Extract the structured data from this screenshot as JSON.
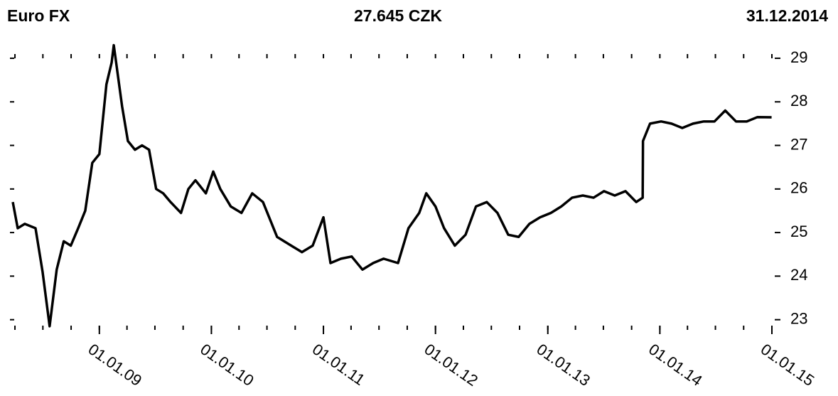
{
  "chart_data": {
    "type": "line",
    "title": "Euro FX",
    "subtitle": "27.645 CZK",
    "date_label": "31.12.2014",
    "x": [
      "2008-03-25",
      "2008-04-10",
      "2008-05-03",
      "2008-06-07",
      "2008-06-30",
      "2008-07-23",
      "2008-08-15",
      "2008-09-07",
      "2008-09-30",
      "2008-10-24",
      "2008-11-16",
      "2008-12-09",
      "2009-01-01",
      "2009-01-24",
      "2009-02-10",
      "2009-02-17",
      "2009-03-16",
      "2009-04-04",
      "2009-04-27",
      "2009-05-20",
      "2009-06-12",
      "2009-07-05",
      "2009-07-28",
      "2009-08-21",
      "2009-09-24",
      "2009-10-18",
      "2009-11-10",
      "2009-12-14",
      "2010-01-07",
      "2010-01-30",
      "2010-03-05",
      "2010-04-09",
      "2010-05-14",
      "2010-06-18",
      "2010-08-03",
      "2010-09-18",
      "2010-10-23",
      "2010-11-27",
      "2011-01-01",
      "2011-01-24",
      "2011-02-27",
      "2011-04-03",
      "2011-05-08",
      "2011-06-12",
      "2011-07-16",
      "2011-09-01",
      "2011-10-05",
      "2011-11-09",
      "2011-12-02",
      "2012-01-01",
      "2012-01-29",
      "2012-03-04",
      "2012-04-08",
      "2012-05-12",
      "2012-06-16",
      "2012-07-21",
      "2012-08-25",
      "2012-09-28",
      "2012-11-02",
      "2012-12-07",
      "2013-01-11",
      "2013-02-14",
      "2013-03-21",
      "2013-04-25",
      "2013-05-30",
      "2013-07-03",
      "2013-08-07",
      "2013-09-11",
      "2013-10-16",
      "2013-11-06",
      "2013-11-07",
      "2013-11-30",
      "2014-01-05",
      "2014-02-08",
      "2014-03-15",
      "2014-04-19",
      "2014-05-24",
      "2014-06-28",
      "2014-08-02",
      "2014-09-06",
      "2014-10-11",
      "2014-11-15",
      "2014-12-31"
    ],
    "series": [
      {
        "name": "Euro FX",
        "color": "#000000",
        "values": [
          25.7,
          25.1,
          25.2,
          25.1,
          24.1,
          22.85,
          24.15,
          24.8,
          24.7,
          25.1,
          25.5,
          26.6,
          26.8,
          28.4,
          28.9,
          29.3,
          27.9,
          27.1,
          26.9,
          27.0,
          26.9,
          26.0,
          25.9,
          25.7,
          25.45,
          26.0,
          26.2,
          25.9,
          26.4,
          26.0,
          25.6,
          25.45,
          25.9,
          25.7,
          24.9,
          24.7,
          24.55,
          24.7,
          25.35,
          24.3,
          24.4,
          24.45,
          24.15,
          24.3,
          24.4,
          24.3,
          25.1,
          25.45,
          25.9,
          25.6,
          25.1,
          24.7,
          24.95,
          25.6,
          25.7,
          25.45,
          24.95,
          24.9,
          25.2,
          25.35,
          25.45,
          25.6,
          25.8,
          25.85,
          25.8,
          25.95,
          25.85,
          25.95,
          25.7,
          25.8,
          27.1,
          27.5,
          27.55,
          27.5,
          27.4,
          27.5,
          27.55,
          27.55,
          27.8,
          27.55,
          27.55,
          27.65,
          27.645
        ]
      }
    ],
    "xlim": [
      "2008-03-25",
      "2015-01-01"
    ],
    "xticks": [
      {
        "value": "2009-01-01",
        "label": "01.01.09"
      },
      {
        "value": "2010-01-01",
        "label": "01.01.10"
      },
      {
        "value": "2011-01-01",
        "label": "01.01.11"
      },
      {
        "value": "2012-01-01",
        "label": "01.01.12"
      },
      {
        "value": "2013-01-01",
        "label": "01.01.13"
      },
      {
        "value": "2014-01-01",
        "label": "01.01.14"
      },
      {
        "value": "2015-01-01",
        "label": "01.01.15"
      }
    ],
    "x_minor_ticks": [
      "2008-04-01",
      "2008-07-01",
      "2008-10-01",
      "2009-01-01",
      "2009-04-01",
      "2009-07-01",
      "2009-10-01",
      "2010-01-01",
      "2010-04-01",
      "2010-07-01",
      "2010-10-01",
      "2011-01-01",
      "2011-04-01",
      "2011-07-01",
      "2011-10-01",
      "2012-01-01",
      "2012-04-01",
      "2012-07-01",
      "2012-10-01",
      "2013-01-01",
      "2013-04-01",
      "2013-07-01",
      "2013-10-01",
      "2014-01-01",
      "2014-04-01",
      "2014-07-01",
      "2014-10-01",
      "2015-01-01"
    ],
    "ylim": [
      22.75,
      29.35
    ],
    "yticks": [
      23,
      24,
      25,
      26,
      27,
      28,
      29
    ],
    "y_axis_side": "right",
    "grid": false
  }
}
